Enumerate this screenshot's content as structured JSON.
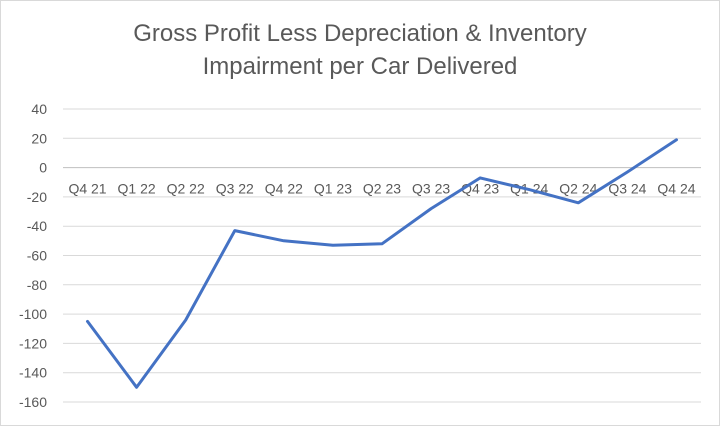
{
  "chart_data": {
    "type": "line",
    "title_lines": [
      "Gross Profit Less Depreciation & Inventory",
      "Impairment per Car Delivered"
    ],
    "categories": [
      "Q4 21",
      "Q1 22",
      "Q2 22",
      "Q3 22",
      "Q4 22",
      "Q1 23",
      "Q2 23",
      "Q3 23",
      "Q4 23",
      "Q1 24",
      "Q2 24",
      "Q3 24",
      "Q4 24"
    ],
    "series": [
      {
        "values": [
          -105,
          -150,
          -104,
          -43,
          -50,
          -53,
          -52,
          -28,
          -7,
          -15,
          -24,
          -3,
          19
        ]
      }
    ],
    "y_ticks": [
      40,
      20,
      0,
      -20,
      -40,
      -60,
      -80,
      -100,
      -120,
      -140,
      -160
    ],
    "ylim": [
      -160,
      40
    ],
    "grid": true,
    "legend": "none",
    "series_color": "#4472c4"
  }
}
